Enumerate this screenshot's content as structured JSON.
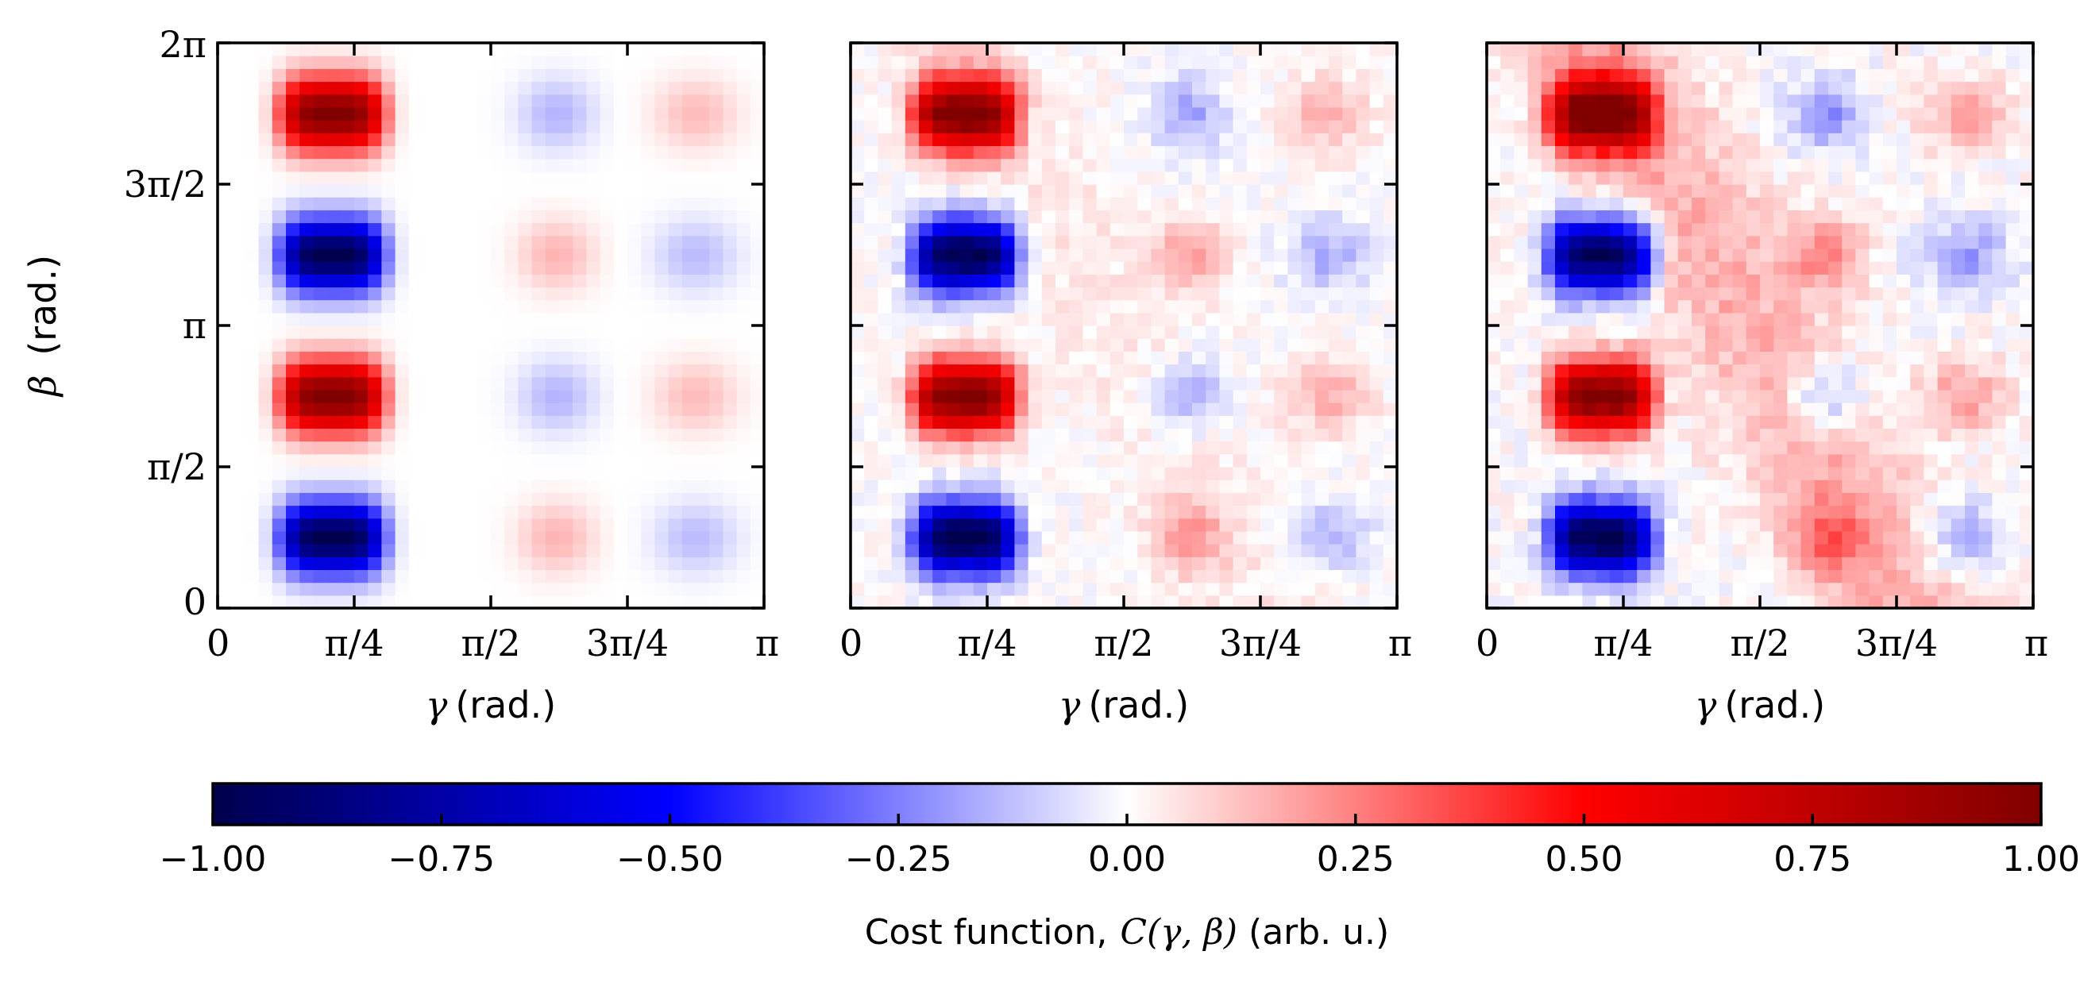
{
  "chart_data": [
    {
      "type": "heatmap",
      "panel": "left",
      "x_axis": {
        "label_symbol": "γ",
        "label_unit": "(rad.)",
        "range": [
          0,
          3.14159
        ],
        "ticks": [
          0,
          0.7854,
          1.5708,
          2.3562,
          3.14159
        ],
        "tick_labels": [
          "0",
          "π/4",
          "π/2",
          "3π/4",
          "π"
        ]
      },
      "y_axis": {
        "label_symbol": "β",
        "label_unit": "(rad.)",
        "range": [
          0,
          6.28319
        ],
        "ticks": [
          0,
          1.5708,
          3.14159,
          4.7124,
          6.28319
        ],
        "tick_labels": [
          "0",
          "π/2",
          "π",
          "3π/2",
          "2π"
        ]
      },
      "grid": false,
      "colormap": "seismic",
      "vmin": -1.0,
      "vmax": 1.0,
      "model": {
        "description_hidden": true,
        "primary_gamma": 0.66,
        "primary_width_x": 0.3,
        "primary_width_y": 0.4,
        "secondary_amp": 0.15,
        "noise": 0.0,
        "diagonal": 0.0
      },
      "field": "C(γ,β)"
    },
    {
      "type": "heatmap",
      "panel": "middle",
      "x_axis": {
        "label_symbol": "γ",
        "label_unit": "(rad.)",
        "range": [
          0,
          3.14159
        ],
        "ticks": [
          0,
          0.7854,
          1.5708,
          2.3562,
          3.14159
        ],
        "tick_labels": [
          "0",
          "π/4",
          "π/2",
          "3π/4",
          "π"
        ]
      },
      "y_axis": {
        "range": [
          0,
          6.28319
        ],
        "ticks": [
          0,
          1.5708,
          3.14159,
          4.7124,
          6.28319
        ],
        "tick_labels": []
      },
      "grid": false,
      "colormap": "seismic",
      "vmin": -1.0,
      "vmax": 1.0,
      "model": {
        "primary_gamma": 0.66,
        "primary_width_x": 0.3,
        "primary_width_y": 0.4,
        "secondary_amp": 0.18,
        "noise": 0.04,
        "diagonal": 0.04
      },
      "field": "C(γ,β)"
    },
    {
      "type": "heatmap",
      "panel": "right",
      "x_axis": {
        "label_symbol": "γ",
        "label_unit": "(rad.)",
        "range": [
          0,
          3.14159
        ],
        "ticks": [
          0,
          0.7854,
          1.5708,
          2.3562,
          3.14159
        ],
        "tick_labels": [
          "0",
          "π/4",
          "π/2",
          "3π/4",
          "π"
        ]
      },
      "y_axis": {
        "range": [
          0,
          6.28319
        ],
        "ticks": [
          0,
          1.5708,
          3.14159,
          4.7124,
          6.28319
        ],
        "tick_labels": []
      },
      "grid": false,
      "colormap": "seismic",
      "vmin": -1.0,
      "vmax": 1.0,
      "model": {
        "primary_gamma": 0.66,
        "primary_width_x": 0.3,
        "primary_width_y": 0.4,
        "secondary_amp": 0.22,
        "noise": 0.05,
        "diagonal": 0.16
      },
      "field": "C(γ,β)"
    }
  ],
  "colorbar": {
    "orientation": "horizontal",
    "vmin": -1.0,
    "vmax": 1.0,
    "ticks": [
      -1.0,
      -0.75,
      -0.5,
      -0.25,
      0.0,
      0.25,
      0.5,
      0.75,
      1.0
    ],
    "tick_labels": [
      "−1.00",
      "−0.75",
      "−0.50",
      "−0.25",
      "0.00",
      "0.25",
      "0.50",
      "0.75",
      "1.00"
    ],
    "label_prefix": "Cost function,",
    "label_math": "C(γ, β)",
    "label_suffix": "(arb. u.)"
  }
}
